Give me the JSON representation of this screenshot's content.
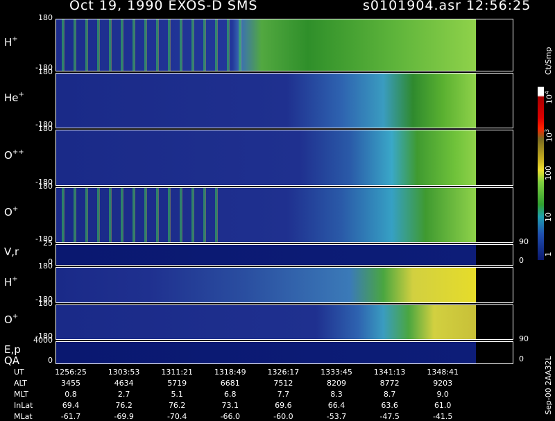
{
  "header": {
    "title": "Oct 19, 1990   EXOS-D SMS",
    "file_time": "s0101904.asr  12:56:25"
  },
  "panels": [
    {
      "label": "H",
      "sup": "+",
      "ticks": [
        "180",
        "-180"
      ]
    },
    {
      "label": "He",
      "sup": "+",
      "ticks": [
        "180",
        "-180"
      ]
    },
    {
      "label": "O",
      "sup": "++",
      "ticks": [
        "180",
        "-180"
      ]
    },
    {
      "label": "O",
      "sup": "+",
      "ticks": [
        "180",
        "-180"
      ]
    },
    {
      "label": "V,r",
      "ticks": [
        "25",
        "0"
      ],
      "right_ticks": [
        "90",
        "0"
      ]
    },
    {
      "label": "H",
      "sup": "+",
      "ticks": [
        "180",
        "-180"
      ]
    },
    {
      "label": "O",
      "sup": "+",
      "ticks": [
        "180",
        "-180"
      ]
    },
    {
      "label": "E,p",
      "label2": "QA",
      "ticks": [
        "4000",
        "0"
      ],
      "right_ticks": [
        "90",
        "0"
      ]
    }
  ],
  "colorbar": {
    "unit": "Ct/Smp",
    "labels": [
      {
        "base": "10",
        "exp": "4"
      },
      {
        "base": "10",
        "exp": "3"
      },
      {
        "base": "100"
      },
      {
        "base": "10"
      },
      {
        "base": "1"
      }
    ]
  },
  "table": {
    "row_labels": [
      "UT",
      "ALT",
      "MLT",
      "InLat",
      "MLat"
    ],
    "rows": [
      [
        "1256:25",
        "1303:53",
        "1311:21",
        "1318:49",
        "1326:17",
        "1333:45",
        "1341:13",
        "1348:41"
      ],
      [
        "3455",
        "4634",
        "5719",
        "6681",
        "7512",
        "8209",
        "8772",
        "9203"
      ],
      [
        "0.8",
        "2.7",
        "5.1",
        "6.8",
        "7.7",
        "8.3",
        "8.7",
        "9.0"
      ],
      [
        "69.4",
        "76.2",
        "76.2",
        "73.1",
        "69.6",
        "66.4",
        "63.6",
        "61.0"
      ],
      [
        "-61.7",
        "-69.9",
        "-70.4",
        "-66.0",
        "-60.0",
        "-53.7",
        "-47.5",
        "-41.5"
      ]
    ]
  },
  "footer": "Sep-00  2AA32L"
}
